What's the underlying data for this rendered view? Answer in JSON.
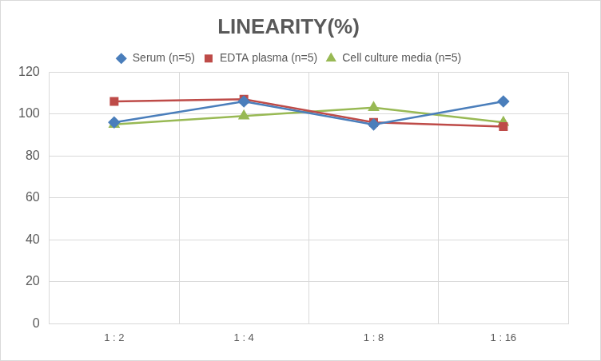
{
  "chart_data": {
    "type": "line",
    "title": "LINEARITY(%)",
    "categories": [
      "1 : 2",
      "1 : 4",
      "1 : 8",
      "1 : 16"
    ],
    "series": [
      {
        "name": "Serum (n=5)",
        "color": "#4a7ebb",
        "marker": "diamond",
        "values": [
          96,
          106,
          95,
          106
        ]
      },
      {
        "name": "EDTA plasma (n=5)",
        "color": "#be4b48",
        "marker": "square",
        "values": [
          106,
          107,
          96,
          94
        ]
      },
      {
        "name": "Cell culture media (n=5)",
        "color": "#98b954",
        "marker": "triangle",
        "values": [
          95,
          99,
          103,
          96
        ]
      }
    ],
    "ylim": [
      0,
      120
    ],
    "yticks": [
      0,
      20,
      40,
      60,
      80,
      100,
      120
    ],
    "grid": true,
    "legend": "top"
  }
}
